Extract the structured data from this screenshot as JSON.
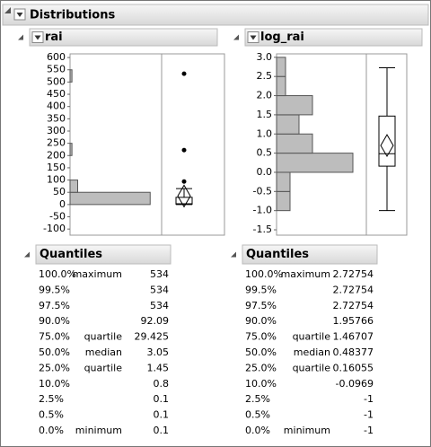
{
  "header": {
    "title": "Distributions"
  },
  "panels": [
    {
      "title": "rai",
      "chart": {
        "type": "histogram",
        "orientation": "horizontal",
        "bins": [
          0,
          50,
          100,
          150,
          200,
          250,
          300,
          350,
          400,
          450,
          500,
          550
        ],
        "values": [
          42,
          4,
          0,
          0,
          1,
          0,
          0,
          0,
          0,
          0,
          1
        ],
        "xlim": [
          0,
          48
        ],
        "ylim": [
          -125,
          615
        ],
        "yticks": [
          600,
          550,
          500,
          450,
          400,
          350,
          300,
          250,
          200,
          150,
          100,
          50,
          0,
          -50,
          -100
        ],
        "color": "#bdbdbd",
        "box": {
          "whisker_high": 65,
          "mean": 35,
          "outliers": [
            534,
            222,
            94
          ]
        }
      },
      "quantiles": {
        "title": "Quantiles",
        "rows": [
          {
            "p": "100.0%",
            "label": "maximum",
            "value": 534
          },
          {
            "p": "99.5%",
            "value": 534
          },
          {
            "p": "97.5%",
            "value": 534
          },
          {
            "p": "90.0%",
            "value": 92.09
          },
          {
            "p": "75.0%",
            "label": "quartile",
            "value": 29.425
          },
          {
            "p": "50.0%",
            "label": "median",
            "value": 3.05
          },
          {
            "p": "25.0%",
            "label": "quartile",
            "value": 1.45
          },
          {
            "p": "10.0%",
            "value": 0.8
          },
          {
            "p": "2.5%",
            "value": 0.1
          },
          {
            "p": "0.5%",
            "value": 0.1
          },
          {
            "p": "0.0%",
            "label": "minimum",
            "value": 0.1
          }
        ]
      }
    },
    {
      "title": "log_rai",
      "chart": {
        "type": "histogram",
        "orientation": "horizontal",
        "bins": [
          -1,
          -0.5,
          0,
          0.5,
          1,
          1.5,
          2,
          2.5,
          3
        ],
        "values": [
          3,
          3,
          17,
          8,
          5,
          8,
          2,
          2
        ],
        "xlim": [
          0,
          20
        ],
        "ylim": [
          -1.64,
          3.09
        ],
        "yticks": [
          {
            "value": 3,
            "label": "3.0"
          },
          2.5,
          {
            "value": 2,
            "label": "2.0"
          },
          1.5,
          {
            "value": 1,
            "label": "1.0"
          },
          0.5,
          {
            "value": 0,
            "label": "0.0"
          },
          -0.5,
          {
            "value": -1,
            "label": "-1.0"
          },
          -1.5
        ],
        "color": "#bdbdbd",
        "box": {
          "mean": 0.7,
          "outliers": []
        }
      },
      "quantiles": {
        "title": "Quantiles",
        "rows": [
          {
            "p": "100.0%",
            "label": "maximum",
            "value": 2.72754
          },
          {
            "p": "99.5%",
            "value": 2.72754
          },
          {
            "p": "97.5%",
            "value": 2.72754
          },
          {
            "p": "90.0%",
            "value": 1.95766
          },
          {
            "p": "75.0%",
            "label": "quartile",
            "value": 1.46707
          },
          {
            "p": "50.0%",
            "label": "median",
            "value": 0.48377
          },
          {
            "p": "25.0%",
            "label": "quartile",
            "value": 0.16055
          },
          {
            "p": "10.0%",
            "value": -0.0969
          },
          {
            "p": "2.5%",
            "value": -1
          },
          {
            "p": "0.5%",
            "value": -1
          },
          {
            "p": "0.0%",
            "label": "minimum",
            "value": -1
          }
        ]
      }
    }
  ]
}
